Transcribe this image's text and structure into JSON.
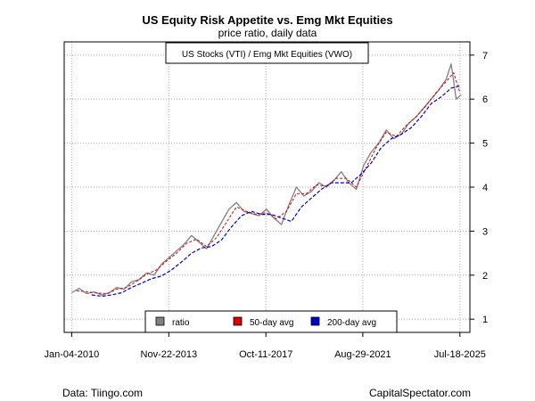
{
  "chart_data": {
    "type": "line",
    "title": "US Equity Risk Appetite vs. Emg Mkt Equities",
    "subtitle": "price ratio, daily data",
    "annotation": "US Stocks (VTI) / Emg Mkt Equities (VWO)",
    "x_tick_labels": [
      "Jan-04-2010",
      "Nov-22-2013",
      "Oct-11-2017",
      "Aug-29-2021",
      "Jul-18-2025"
    ],
    "y_ticks": [
      1,
      2,
      3,
      4,
      5,
      6,
      7
    ],
    "ylim": [
      0.7,
      7.3
    ],
    "y_axis_side": "right",
    "grid": true,
    "legend_position": "bottom-center",
    "series": [
      {
        "name": "ratio",
        "color": "#808080",
        "x": [
          2010.0,
          2010.3,
          2010.6,
          2010.9,
          2011.2,
          2011.5,
          2011.8,
          2012.1,
          2012.4,
          2012.7,
          2013.0,
          2013.3,
          2013.6,
          2013.9,
          2014.2,
          2014.5,
          2014.8,
          2015.1,
          2015.4,
          2015.7,
          2016.0,
          2016.3,
          2016.6,
          2016.9,
          2017.2,
          2017.5,
          2017.8,
          2018.1,
          2018.4,
          2018.7,
          2019.0,
          2019.3,
          2019.6,
          2019.9,
          2020.2,
          2020.5,
          2020.8,
          2021.1,
          2021.4,
          2021.7,
          2022.0,
          2022.3,
          2022.6,
          2022.9,
          2023.2,
          2023.5,
          2023.8,
          2024.1,
          2024.4,
          2024.7,
          2025.0,
          2025.2,
          2025.4,
          2025.6
        ],
        "values": [
          1.6,
          1.7,
          1.58,
          1.62,
          1.55,
          1.6,
          1.72,
          1.68,
          1.85,
          1.9,
          2.05,
          2.0,
          2.25,
          2.4,
          2.55,
          2.7,
          2.9,
          2.75,
          2.6,
          2.9,
          3.2,
          3.5,
          3.65,
          3.45,
          3.4,
          3.35,
          3.5,
          3.3,
          3.15,
          3.6,
          4.0,
          3.8,
          3.9,
          4.1,
          4.0,
          4.15,
          4.35,
          4.1,
          3.95,
          4.5,
          4.8,
          5.0,
          5.3,
          5.1,
          5.2,
          5.45,
          5.6,
          5.8,
          6.0,
          6.2,
          6.45,
          6.8,
          6.0,
          6.1
        ]
      },
      {
        "name": "50-day avg",
        "color": "#dd0000",
        "x": [
          2010.2,
          2010.6,
          2011.0,
          2011.4,
          2011.8,
          2012.2,
          2012.6,
          2013.0,
          2013.4,
          2013.8,
          2014.2,
          2014.6,
          2015.0,
          2015.4,
          2015.8,
          2016.2,
          2016.6,
          2017.0,
          2017.4,
          2017.8,
          2018.2,
          2018.6,
          2019.0,
          2019.4,
          2019.8,
          2020.2,
          2020.6,
          2021.0,
          2021.4,
          2021.8,
          2022.2,
          2022.6,
          2023.0,
          2023.4,
          2023.8,
          2024.2,
          2024.6,
          2025.0,
          2025.3,
          2025.55
        ],
        "values": [
          1.65,
          1.62,
          1.6,
          1.57,
          1.68,
          1.72,
          1.86,
          2.02,
          2.12,
          2.32,
          2.5,
          2.72,
          2.82,
          2.65,
          2.85,
          3.2,
          3.55,
          3.45,
          3.38,
          3.42,
          3.28,
          3.45,
          3.85,
          3.85,
          4.05,
          4.02,
          4.2,
          4.2,
          4.0,
          4.45,
          4.9,
          5.25,
          5.15,
          5.4,
          5.6,
          5.85,
          6.15,
          6.4,
          6.6,
          6.15
        ]
      },
      {
        "name": "200-day avg",
        "color": "#0000cc",
        "x": [
          2010.8,
          2011.2,
          2011.6,
          2012.0,
          2012.4,
          2012.8,
          2013.2,
          2013.6,
          2014.0,
          2014.4,
          2014.8,
          2015.2,
          2015.6,
          2016.0,
          2016.4,
          2016.8,
          2017.2,
          2017.6,
          2018.0,
          2018.4,
          2018.8,
          2019.2,
          2019.6,
          2020.0,
          2020.4,
          2020.8,
          2021.2,
          2021.6,
          2022.0,
          2022.4,
          2022.8,
          2023.2,
          2023.6,
          2024.0,
          2024.4,
          2024.8,
          2025.2,
          2025.55
        ],
        "values": [
          1.55,
          1.52,
          1.55,
          1.6,
          1.72,
          1.82,
          1.92,
          1.98,
          2.12,
          2.3,
          2.5,
          2.62,
          2.65,
          2.8,
          3.1,
          3.35,
          3.45,
          3.38,
          3.38,
          3.3,
          3.22,
          3.55,
          3.75,
          3.95,
          4.1,
          4.1,
          4.1,
          4.3,
          4.55,
          4.9,
          5.1,
          5.2,
          5.35,
          5.6,
          5.9,
          6.05,
          6.25,
          6.3
        ]
      }
    ]
  },
  "footer": {
    "source": "Data: Tiingo.com",
    "site": "CapitalSpectator.com"
  }
}
